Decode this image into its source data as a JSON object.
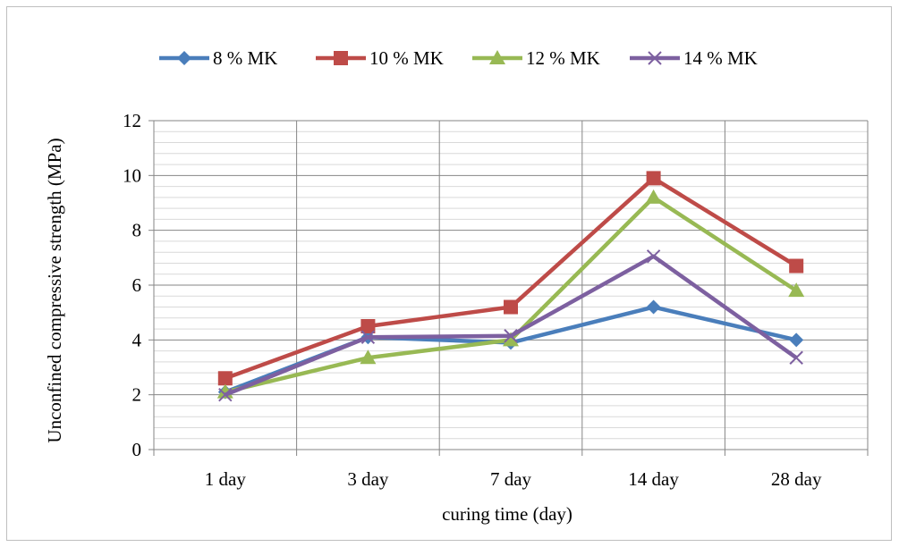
{
  "chart_data": {
    "type": "line",
    "title": "",
    "xlabel": "curing time (day)",
    "ylabel": "Unconfined compressive strength (MPa)",
    "categories": [
      "1 day",
      "3 day",
      "7 day",
      "14 day",
      "28 day"
    ],
    "ylim": [
      0,
      12
    ],
    "yticks": [
      0,
      2,
      4,
      6,
      8,
      10,
      12
    ],
    "grid": true,
    "legend_position": "top",
    "series": [
      {
        "name": "8 % MK",
        "color": "#4a7ebb",
        "marker": "diamond",
        "values": [
          2.1,
          4.1,
          3.9,
          5.2,
          4.0
        ]
      },
      {
        "name": "10 % MK",
        "color": "#be4b48",
        "marker": "square",
        "values": [
          2.6,
          4.5,
          5.2,
          9.9,
          6.7
        ]
      },
      {
        "name": "12 % MK",
        "color": "#98b954",
        "marker": "triangle",
        "values": [
          2.1,
          3.35,
          4.0,
          9.2,
          5.8
        ]
      },
      {
        "name": "14 % MK",
        "color": "#7d60a0",
        "marker": "x",
        "values": [
          2.0,
          4.1,
          4.15,
          7.05,
          3.35
        ]
      }
    ]
  }
}
